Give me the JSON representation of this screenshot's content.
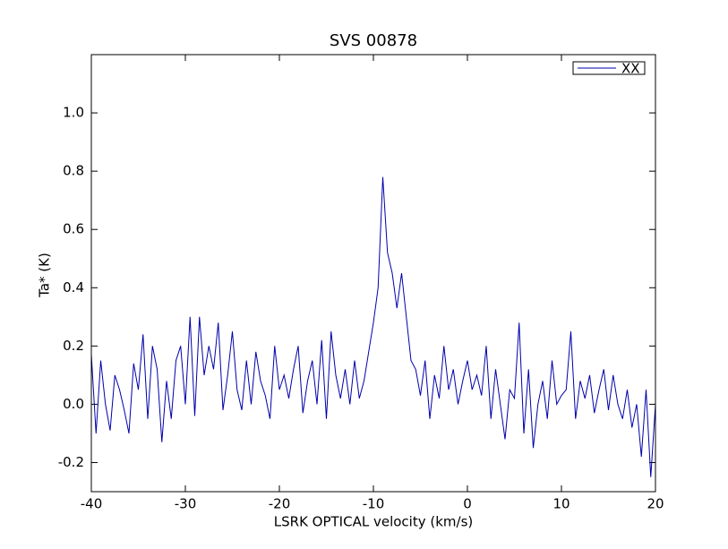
{
  "chart_data": {
    "type": "line",
    "title": "SVS 00878",
    "x_label": "LSRK OPTICAL velocity (km/s)",
    "y_label": "Ta* (K)",
    "x": [
      -40,
      -39.5,
      -39,
      -38.5,
      -38,
      -37.5,
      -37,
      -36.5,
      -36,
      -35.5,
      -35,
      -34.5,
      -34,
      -33.5,
      -33,
      -32.5,
      -32,
      -31.5,
      -31,
      -30.5,
      -30,
      -29.5,
      -29,
      -28.5,
      -28,
      -27.5,
      -27,
      -26.5,
      -26,
      -25.5,
      -25,
      -24.5,
      -24,
      -23.5,
      -23,
      -22.5,
      -22,
      -21.5,
      -21,
      -20.5,
      -20,
      -19.5,
      -19,
      -18.5,
      -18,
      -17.5,
      -17,
      -16.5,
      -16,
      -15.5,
      -15,
      -14.5,
      -14,
      -13.5,
      -13,
      -12.5,
      -12,
      -11.5,
      -11,
      -10.5,
      -10,
      -9.5,
      -9,
      -8.5,
      -8,
      -7.5,
      -7,
      -6.5,
      -6,
      -5.5,
      -5,
      -4.5,
      -4,
      -3.5,
      -3,
      -2.5,
      -2,
      -1.5,
      -1,
      -0.5,
      0,
      0.5,
      1,
      1.5,
      2,
      2.5,
      3,
      3.5,
      4,
      4.5,
      5,
      5.5,
      6,
      6.5,
      7,
      7.5,
      8,
      8.5,
      9,
      9.5,
      10,
      10.5,
      11,
      11.5,
      12,
      12.5,
      13,
      13.5,
      14,
      14.5,
      15,
      15.5,
      16,
      16.5,
      17,
      17.5,
      18,
      18.5,
      19,
      19.5,
      20
    ],
    "series": [
      {
        "name": "XX",
        "color": "#0000aa",
        "values": [
          0.17,
          -0.1,
          0.15,
          0.0,
          -0.09,
          0.1,
          0.05,
          -0.02,
          -0.1,
          0.14,
          0.05,
          0.24,
          -0.05,
          0.2,
          0.12,
          -0.13,
          0.08,
          -0.05,
          0.15,
          0.2,
          0.0,
          0.3,
          -0.04,
          0.3,
          0.1,
          0.2,
          0.12,
          0.28,
          -0.02,
          0.1,
          0.25,
          0.05,
          -0.02,
          0.15,
          0.0,
          0.18,
          0.08,
          0.03,
          -0.05,
          0.2,
          0.05,
          0.1,
          0.02,
          0.12,
          0.2,
          -0.03,
          0.08,
          0.15,
          0.0,
          0.22,
          -0.05,
          0.25,
          0.1,
          0.02,
          0.12,
          0.0,
          0.15,
          0.02,
          0.08,
          0.18,
          0.28,
          0.4,
          0.78,
          0.52,
          0.45,
          0.33,
          0.45,
          0.3,
          0.15,
          0.12,
          0.03,
          0.15,
          -0.05,
          0.1,
          0.02,
          0.2,
          0.05,
          0.12,
          0.0,
          0.08,
          0.15,
          0.05,
          0.1,
          0.03,
          0.2,
          -0.05,
          0.12,
          0.0,
          -0.12,
          0.05,
          0.02,
          0.28,
          -0.1,
          0.12,
          -0.15,
          0.0,
          0.08,
          -0.05,
          0.15,
          0.0,
          0.03,
          0.05,
          0.25,
          -0.05,
          0.08,
          0.02,
          0.1,
          -0.03,
          0.05,
          0.12,
          -0.02,
          0.1,
          0.0,
          -0.05,
          0.05,
          -0.08,
          0.0,
          -0.18,
          0.05,
          -0.25,
          0.0
        ]
      }
    ],
    "xlim": [
      -40,
      20
    ],
    "xticks": [
      -40,
      -30,
      -20,
      -10,
      0,
      10,
      20
    ],
    "ylim": [
      -0.3,
      1.2
    ],
    "yticks": [
      -0.2,
      {
        "value": 0,
        "label": "0.0"
      },
      0.2,
      0.4,
      0.6,
      0.8,
      {
        "value": 1,
        "label": "1.0"
      }
    ],
    "legend": "upper right"
  }
}
